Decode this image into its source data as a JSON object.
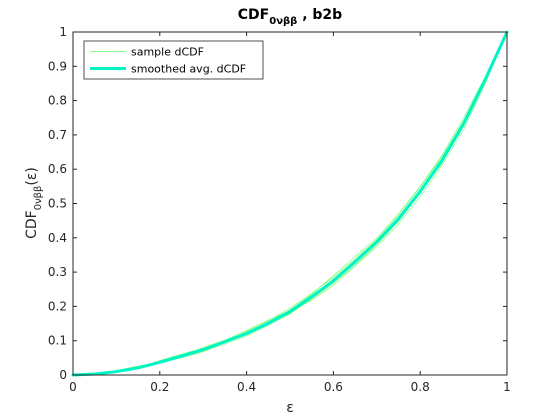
{
  "chart_data": {
    "type": "line",
    "title": {
      "main": "CDF",
      "sub": "0νββ",
      "suffix": " , b2b"
    },
    "xlabel": "ε",
    "ylabel": {
      "main": "CDF",
      "sub": "0νββ",
      "suffix": "(ε)"
    },
    "xlim": [
      0,
      1
    ],
    "ylim": [
      0,
      1
    ],
    "xticks": [
      "0",
      "0.2",
      "0.4",
      "0.6",
      "0.8",
      "1"
    ],
    "yticks": [
      "0",
      "0.1",
      "0.2",
      "0.3",
      "0.4",
      "0.5",
      "0.6",
      "0.7",
      "0.8",
      "0.9",
      "1"
    ],
    "grid": false,
    "legend_placement": "top-left",
    "x": [
      0,
      0.05,
      0.1,
      0.15,
      0.2,
      0.25,
      0.3,
      0.35,
      0.4,
      0.45,
      0.5,
      0.55,
      0.6,
      0.65,
      0.7,
      0.75,
      0.8,
      0.85,
      0.9,
      0.95,
      1
    ],
    "series": [
      {
        "name": "sample dCDF",
        "color": "#66ff66",
        "width": 0.6,
        "values": [
          0,
          0.003,
          0.009,
          0.021,
          0.042,
          0.061,
          0.078,
          0.098,
          0.125,
          0.152,
          0.19,
          0.235,
          0.29,
          0.345,
          0.4,
          0.47,
          0.55,
          0.64,
          0.75,
          0.87,
          1
        ]
      },
      {
        "name": "",
        "color": "#66ff66",
        "width": 0.6,
        "values": [
          0,
          0.005,
          0.013,
          0.026,
          0.037,
          0.05,
          0.068,
          0.094,
          0.118,
          0.15,
          0.18,
          0.225,
          0.27,
          0.33,
          0.385,
          0.455,
          0.535,
          0.625,
          0.73,
          0.86,
          1
        ]
      },
      {
        "name": "",
        "color": "#66ff66",
        "width": 0.6,
        "values": [
          0,
          0.004,
          0.011,
          0.02,
          0.034,
          0.052,
          0.073,
          0.097,
          0.122,
          0.148,
          0.184,
          0.218,
          0.262,
          0.318,
          0.375,
          0.44,
          0.52,
          0.61,
          0.715,
          0.85,
          1
        ]
      },
      {
        "name": "",
        "color": "#66ff66",
        "width": 0.6,
        "values": [
          0,
          0.002,
          0.008,
          0.019,
          0.035,
          0.056,
          0.08,
          0.102,
          0.128,
          0.158,
          0.195,
          0.238,
          0.285,
          0.338,
          0.395,
          0.465,
          0.548,
          0.635,
          0.742,
          0.866,
          1
        ]
      },
      {
        "name": "",
        "color": "#66ff66",
        "width": 0.6,
        "values": [
          0,
          0.003,
          0.01,
          0.024,
          0.04,
          0.058,
          0.07,
          0.09,
          0.114,
          0.145,
          0.178,
          0.222,
          0.268,
          0.32,
          0.38,
          0.448,
          0.53,
          0.618,
          0.728,
          0.858,
          1
        ]
      },
      {
        "name": "",
        "color": "#66ff66",
        "width": 0.6,
        "values": [
          0,
          0.004,
          0.012,
          0.022,
          0.038,
          0.055,
          0.075,
          0.1,
          0.13,
          0.16,
          0.188,
          0.23,
          0.278,
          0.328,
          0.39,
          0.458,
          0.54,
          0.628,
          0.735,
          0.862,
          1
        ]
      },
      {
        "name": "smoothed avg. dCDF",
        "color": "#00f5c4",
        "width": 3,
        "values": [
          0,
          0.003,
          0.01,
          0.021,
          0.037,
          0.055,
          0.074,
          0.097,
          0.121,
          0.151,
          0.185,
          0.228,
          0.275,
          0.33,
          0.388,
          0.455,
          0.535,
          0.625,
          0.732,
          0.862,
          1
        ]
      }
    ]
  }
}
